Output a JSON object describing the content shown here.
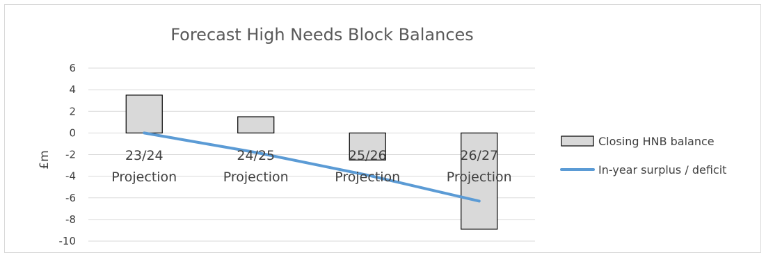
{
  "chart_data": {
    "type": "bar",
    "title": "Forecast High Needs Block Balances",
    "xlabel": "",
    "ylabel": "£m",
    "ylim": [
      -10,
      6
    ],
    "yticks": [
      6,
      4,
      2,
      0,
      -2,
      -4,
      -6,
      -8,
      -10
    ],
    "categories": [
      [
        "23/24",
        "Projection"
      ],
      [
        "24/25",
        "Projection"
      ],
      [
        "25/26",
        "Projection"
      ],
      [
        "26/27",
        "Projection"
      ]
    ],
    "grid": true,
    "legend_position": "right",
    "series": [
      {
        "name": "Closing HNB balance",
        "kind": "bar",
        "values": [
          3.5,
          1.5,
          -2.5,
          -8.9
        ],
        "color": "#d9d9d9"
      },
      {
        "name": "In-year surplus / deficit",
        "kind": "line",
        "values": [
          0.0,
          -1.8,
          -3.9,
          -6.3
        ],
        "color": "#5b9bd5"
      }
    ]
  }
}
